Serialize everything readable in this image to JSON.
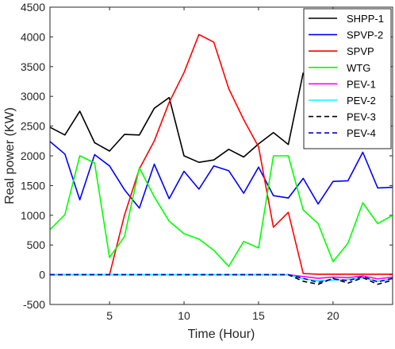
{
  "chart_data": {
    "type": "line",
    "xlabel": "Time (Hour)",
    "ylabel": "Real power (KW)",
    "xlim": [
      1,
      24
    ],
    "ylim": [
      -500,
      4500
    ],
    "x_ticks": [
      5,
      10,
      15,
      20
    ],
    "x_tick_labels": [
      "5",
      "10",
      "15",
      "20"
    ],
    "y_ticks": [
      -500,
      0,
      500,
      1000,
      1500,
      2000,
      2500,
      3000,
      3500,
      4000,
      4500
    ],
    "y_tick_labels": [
      "-500",
      "0",
      "500",
      "1000",
      "1500",
      "2000",
      "2500",
      "3000",
      "3500",
      "4000",
      "4500"
    ],
    "grid": false,
    "legend_position": "top-right",
    "x": [
      1,
      2,
      3,
      4,
      5,
      6,
      7,
      8,
      9,
      10,
      11,
      12,
      13,
      14,
      15,
      16,
      17,
      18,
      19,
      20,
      21,
      22,
      23,
      24
    ],
    "series": [
      {
        "name": "SHPP-1",
        "color": "#000000",
        "dash": "solid",
        "values": [
          2480,
          2350,
          2750,
          2220,
          2080,
          2360,
          2350,
          2800,
          2980,
          2000,
          1890,
          1930,
          2110,
          1980,
          2200,
          2390,
          2190,
          3400,
          null,
          null,
          null,
          null,
          null,
          null
        ]
      },
      {
        "name": "SPVP-2",
        "color": "#0000ff",
        "dash": "solid",
        "values": [
          2240,
          2030,
          1260,
          2020,
          1830,
          1430,
          1120,
          1860,
          1280,
          1740,
          1440,
          1830,
          1750,
          1370,
          1810,
          1330,
          1290,
          1620,
          1190,
          1570,
          1580,
          2060,
          1460,
          1470
        ]
      },
      {
        "name": "SPVP",
        "color": "#ff0000",
        "dash": "solid",
        "values": [
          0,
          0,
          0,
          0,
          0,
          1000,
          1780,
          2250,
          2900,
          3400,
          4040,
          3910,
          3130,
          2610,
          2150,
          800,
          1050,
          20,
          10,
          10,
          10,
          10,
          10,
          10
        ]
      },
      {
        "name": "WTG",
        "color": "#00ff00",
        "dash": "solid",
        "values": [
          760,
          1010,
          2000,
          1880,
          290,
          640,
          1800,
          1310,
          900,
          690,
          600,
          410,
          140,
          560,
          450,
          2000,
          2000,
          1090,
          860,
          220,
          530,
          1210,
          860,
          1000
        ]
      },
      {
        "name": "PEV-1",
        "color": "#ff00ff",
        "dash": "solid",
        "values": [
          0,
          0,
          0,
          0,
          0,
          0,
          0,
          0,
          0,
          0,
          0,
          0,
          0,
          0,
          0,
          0,
          0,
          -30,
          -60,
          -40,
          -50,
          -20,
          -70,
          -40
        ]
      },
      {
        "name": "PEV-2",
        "color": "#00ffff",
        "dash": "solid",
        "values": [
          0,
          0,
          0,
          0,
          0,
          0,
          0,
          0,
          0,
          0,
          0,
          0,
          0,
          0,
          0,
          0,
          0,
          -70,
          -100,
          -90,
          -80,
          -50,
          -110,
          -70
        ]
      },
      {
        "name": "PEV-3",
        "color": "#000000",
        "dash": "dashed",
        "values": [
          0,
          0,
          0,
          0,
          0,
          0,
          0,
          0,
          0,
          0,
          0,
          0,
          0,
          0,
          0,
          0,
          0,
          -110,
          -160,
          -60,
          -140,
          -50,
          -160,
          -90
        ]
      },
      {
        "name": "PEV-4",
        "color": "#0000cc",
        "dash": "dashed",
        "values": [
          0,
          0,
          0,
          0,
          0,
          0,
          0,
          0,
          0,
          0,
          0,
          0,
          0,
          0,
          0,
          0,
          0,
          -60,
          -130,
          -70,
          -100,
          -30,
          -120,
          -60
        ]
      }
    ]
  }
}
